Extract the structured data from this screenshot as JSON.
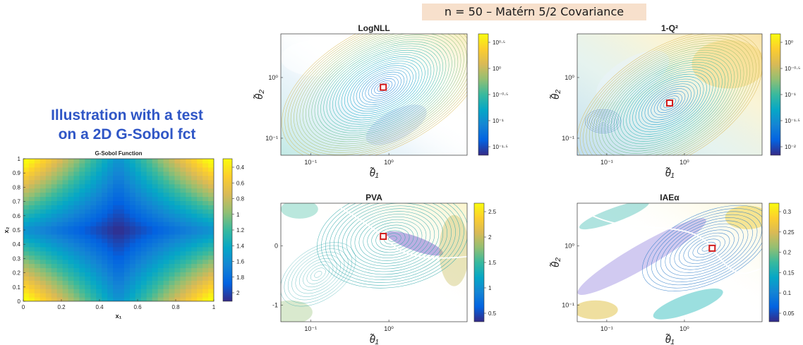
{
  "banner": "n = 50 – Matérn 5/2 Covariance",
  "illustration": {
    "line1": "Illustration with a test",
    "line2": "on a 2D G-Sobol fct"
  },
  "chart_data": [
    {
      "type": "heatmap",
      "title": "G-Sobol Function",
      "xlabel": "x₁",
      "ylabel": "x₂",
      "xlim": [
        0,
        1
      ],
      "ylim": [
        0,
        1
      ],
      "xticks": [
        "0",
        "0.2",
        "0.4",
        "0.6",
        "0.8",
        "1"
      ],
      "yticks": [
        "0",
        "0.1",
        "0.2",
        "0.3",
        "0.4",
        "0.5",
        "0.6",
        "0.7",
        "0.8",
        "0.9",
        "1"
      ],
      "colorbar": {
        "range": [
          0.3,
          2.0
        ],
        "ticks": [
          "0.4",
          "0.6",
          "0.8",
          "1",
          "1.2",
          "1.4",
          "1.6",
          "1.8",
          "2"
        ]
      },
      "min_point": [
        0.5,
        0.5
      ],
      "colormap": "parula"
    },
    {
      "type": "contour",
      "title": "LogNLL",
      "xlabel": "θ̃₁",
      "ylabel": "θ̃₂",
      "xticks": [
        "10⁻¹",
        "10⁰"
      ],
      "yticks": [
        "10⁰",
        "10⁻¹"
      ],
      "colorbar": {
        "scale": "log",
        "ticks": [
          "10⁰·⁵",
          "10⁰",
          "10⁻⁰·⁵",
          "10⁻¹",
          "10⁻¹·⁵"
        ]
      },
      "optimum_marker": "red-square"
    },
    {
      "type": "contour",
      "title": "1-Q²",
      "xlabel": "θ̃₁",
      "ylabel": "θ̃₂",
      "xticks": [
        "10⁻¹",
        "10⁰"
      ],
      "yticks": [
        "10⁰",
        "10⁻¹"
      ],
      "colorbar": {
        "scale": "log",
        "ticks": [
          "10⁰",
          "10⁻⁰·⁵",
          "10⁻¹",
          "10⁻¹·⁵",
          "10⁻²"
        ]
      },
      "optimum_marker": "red-square"
    },
    {
      "type": "contour",
      "title": "PVA",
      "xlabel": "θ̃₁",
      "ylabel": "",
      "xticks": [
        "10⁻¹",
        "10⁰"
      ],
      "yticks": [
        "0",
        "-1"
      ],
      "colorbar": {
        "ticks": [
          "2.5",
          "2",
          "1.5",
          "1",
          "0.5"
        ]
      },
      "optimum_marker": "red-square"
    },
    {
      "type": "contour",
      "title": "IAEα",
      "xlabel": "θ̃₁",
      "ylabel": "θ̃₂",
      "xticks": [
        "10⁻¹",
        "10⁰"
      ],
      "yticks": [
        "10⁰",
        "10⁻¹"
      ],
      "colorbar": {
        "ticks": [
          "0.3",
          "0.25",
          "0.2",
          "0.15",
          "0.1",
          "0.05"
        ]
      },
      "optimum_marker": "red-square"
    }
  ]
}
